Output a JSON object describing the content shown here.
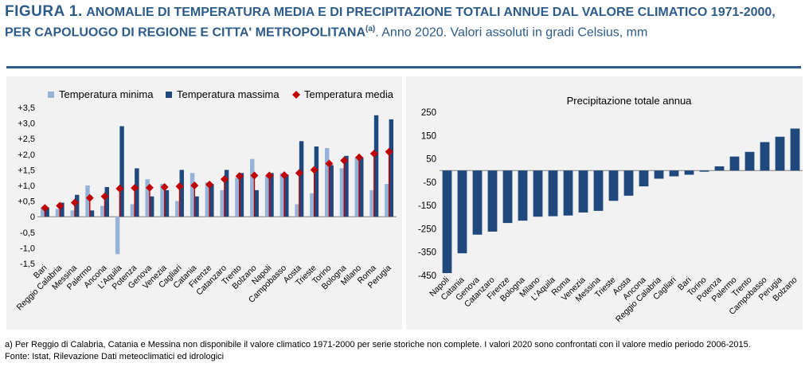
{
  "title": {
    "figure_label": "FIGURA 1.",
    "main": "ANOMALIE DI TEMPERATURA MEDIA E DI PRECIPITAZIONE TOTALI ANNUE DAL VALORE CLIMATICO 1971-2000, PER CAPOLUOGO DI REGIONE E CITTA' METROPOLITANA",
    "note_marker": "(a)",
    "tail": ". Anno 2020. Valori assoluti in gradi Celsius, mm"
  },
  "notes": {
    "note_a": "a) Per Reggio di Calabria, Catania e Messina non disponibile il valore climatico 1971-2000 per serie storiche non complete. I valori 2020 sono confrontati con il valore medio periodo 2006-2015.",
    "source": "Fonte: Istat, Rilevazione Dati meteoclimatici ed idrologici"
  },
  "colors": {
    "min": "#95b3d7",
    "max": "#1f497d",
    "mean": "#c00000",
    "precip": "#1f497d",
    "title": "#2e5c8a"
  },
  "chart_data": [
    {
      "type": "bar",
      "title": "",
      "xlabel": "",
      "ylabel": "",
      "ylim": [
        -1.5,
        3.5
      ],
      "y_ticks": [
        "+3,5",
        "+3,0",
        "+2,5",
        "+2,0",
        "+1,5",
        "+1,0",
        "+0,5",
        "0",
        "-0,5",
        "-1,0",
        "-1,5"
      ],
      "y_tick_values": [
        3.5,
        3.0,
        2.5,
        2.0,
        1.5,
        1.0,
        0.5,
        0,
        -0.5,
        -1.0,
        -1.5
      ],
      "legend_position": "top",
      "categories": [
        "Bari",
        "Reggio Calabria",
        "Messina",
        "Palermo",
        "Ancona",
        "L'Aquila",
        "Potenza",
        "Genova",
        "Venezia",
        "Cagliari",
        "Catania",
        "Firenze",
        "Catanzaro",
        "Trento",
        "Bolzano",
        "Napoli",
        "Campobasso",
        "Aosta",
        "Trieste",
        "Torino",
        "Bologna",
        "Milano",
        "Roma",
        "Perugia"
      ],
      "series": [
        {
          "name": "Temperatura minima",
          "kind": "bar",
          "values": [
            0.3,
            0.25,
            0.2,
            1.0,
            0.35,
            -1.2,
            0.4,
            1.2,
            1.05,
            0.5,
            1.4,
            1.1,
            0.85,
            1.25,
            1.85,
            1.3,
            1.4,
            0.4,
            0.75,
            2.2,
            1.55,
            1.9,
            0.85,
            1.05
          ]
        },
        {
          "name": "Temperatura massima",
          "kind": "bar",
          "values": [
            0.3,
            0.45,
            0.7,
            0.2,
            0.95,
            2.9,
            1.55,
            0.65,
            0.85,
            1.5,
            0.65,
            1.05,
            1.5,
            1.4,
            0.85,
            1.4,
            1.35,
            2.42,
            2.25,
            1.65,
            1.95,
            1.9,
            3.25,
            3.12
          ]
        },
        {
          "name": "Temperatura media",
          "kind": "marker",
          "values": [
            0.28,
            0.35,
            0.45,
            0.6,
            0.65,
            0.9,
            0.92,
            0.93,
            0.95,
            0.97,
            1.0,
            1.03,
            1.2,
            1.3,
            1.32,
            1.32,
            1.33,
            1.4,
            1.5,
            1.7,
            1.8,
            1.9,
            2.02,
            2.08
          ]
        }
      ]
    },
    {
      "type": "bar",
      "title": "Precipitazione totale annua",
      "xlabel": "",
      "ylabel": "",
      "ylim": [
        -450,
        250
      ],
      "y_ticks": [
        "250",
        "150",
        "50",
        "-50",
        "-150",
        "-250",
        "-350",
        "-450"
      ],
      "y_tick_values": [
        250,
        150,
        50,
        -50,
        -150,
        -250,
        -350,
        -450
      ],
      "categories": [
        "Napoli",
        "Catania",
        "Genova",
        "Catanzaro",
        "Firenze",
        "Bologna",
        "Milano",
        "L'Aquila",
        "Roma",
        "Venezia",
        "Messina",
        "Trieste",
        "Aosta",
        "Ancona",
        "Reggio Calabria",
        "Cagliari",
        "Bari",
        "Torino",
        "Potenza",
        "Palermo",
        "Trento",
        "Campobasso",
        "Perugia",
        "Bolzano"
      ],
      "series": [
        {
          "name": "",
          "values": [
            -440,
            -355,
            -275,
            -262,
            -225,
            -215,
            -198,
            -196,
            -193,
            -180,
            -173,
            -130,
            -108,
            -68,
            -35,
            -25,
            -18,
            -5,
            18,
            60,
            80,
            122,
            145,
            180
          ]
        }
      ]
    }
  ]
}
